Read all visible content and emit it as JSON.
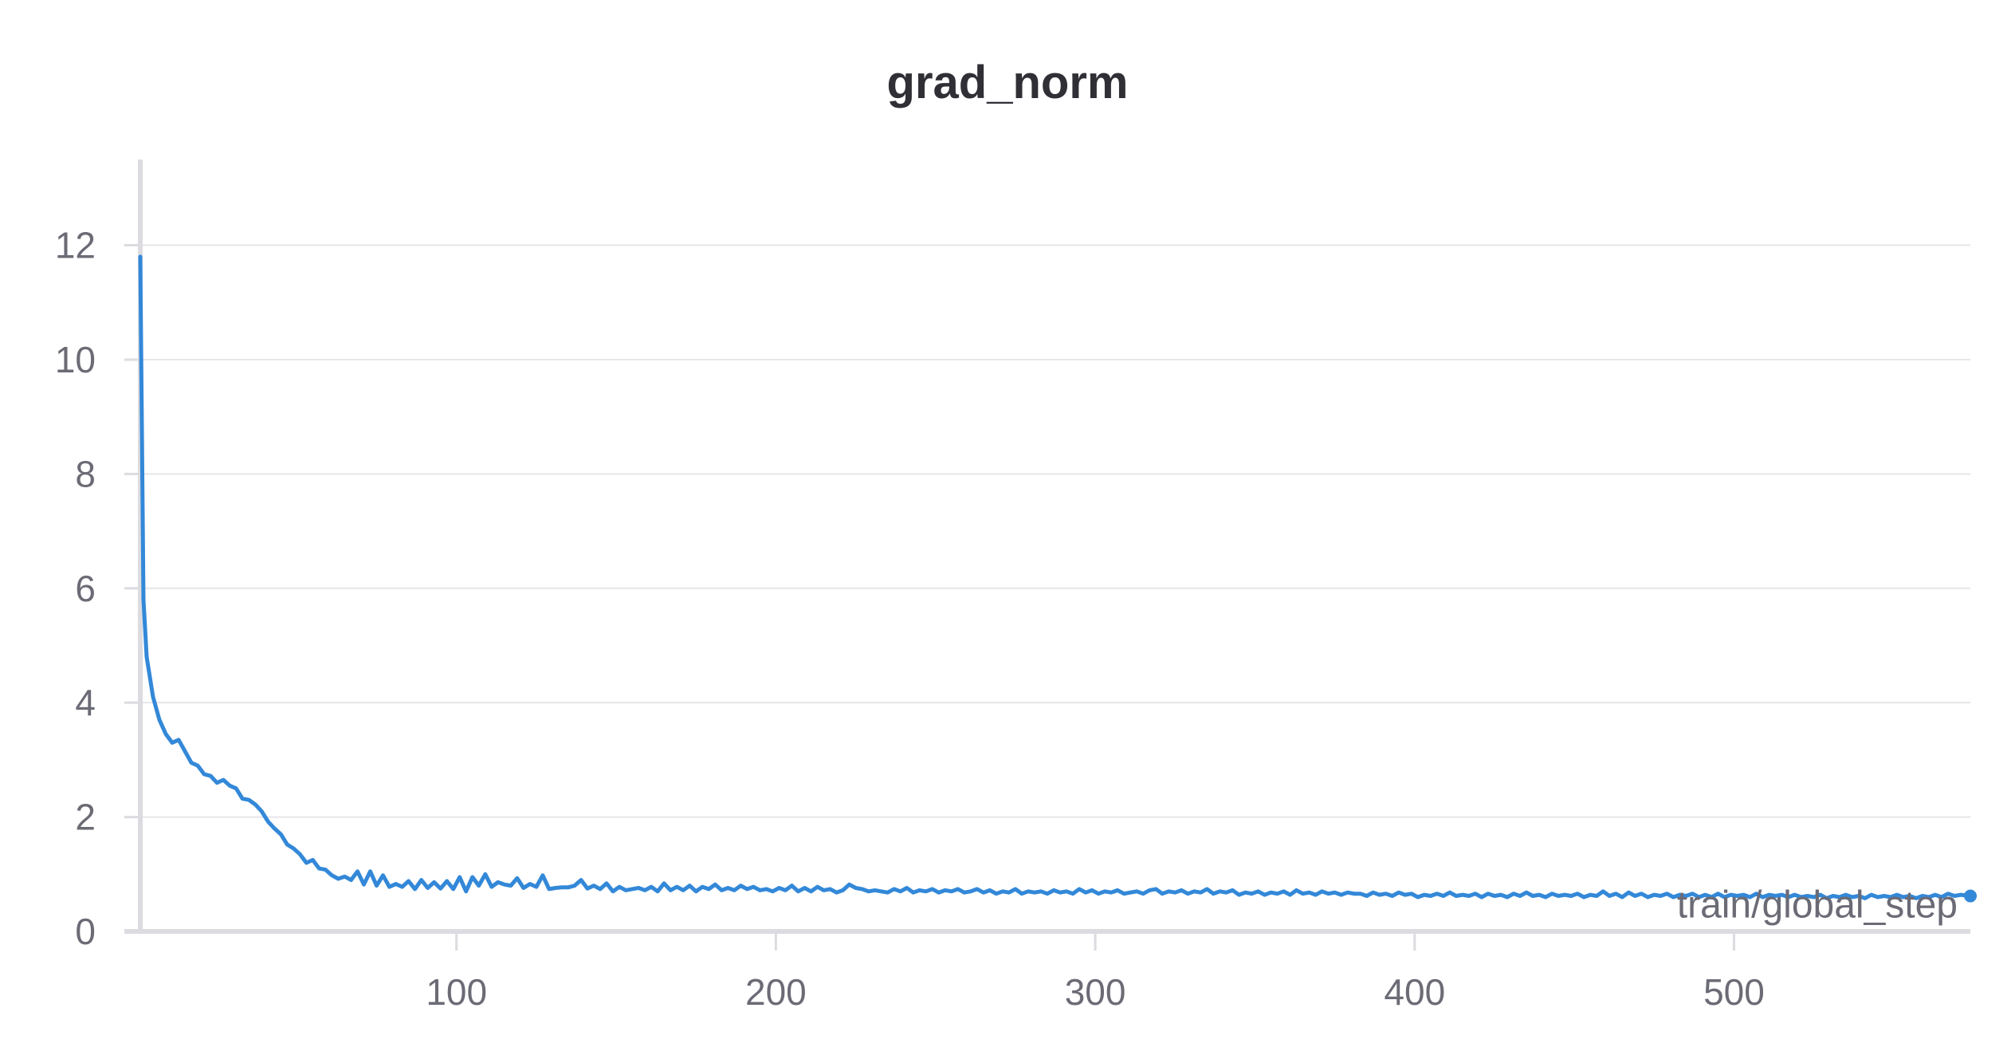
{
  "chart_data": {
    "type": "line",
    "title": "grad_norm",
    "xlabel": "train/global_step",
    "ylabel": "",
    "xlim": [
      1,
      574
    ],
    "ylim": [
      0,
      13.5
    ],
    "x_ticks": [
      100,
      200,
      300,
      400,
      500
    ],
    "y_ticks": [
      0,
      2,
      4,
      6,
      8,
      10,
      12
    ],
    "grid": "horizontal",
    "colors": {
      "line": "#3388d8",
      "grid": "#e6e6ea",
      "axis": "#dcdce0",
      "text": "#6b6b76",
      "title": "#2f2f35"
    },
    "series": [
      {
        "points": [
          [
            1,
            11.8
          ],
          [
            2,
            5.8
          ],
          [
            3,
            4.8
          ],
          [
            5,
            4.1
          ],
          [
            7,
            3.7
          ],
          [
            9,
            3.45
          ],
          [
            11,
            3.3
          ],
          [
            13,
            3.35
          ],
          [
            15,
            3.15
          ],
          [
            17,
            2.95
          ],
          [
            19,
            2.9
          ],
          [
            21,
            2.75
          ],
          [
            23,
            2.72
          ],
          [
            25,
            2.6
          ],
          [
            27,
            2.65
          ],
          [
            29,
            2.55
          ],
          [
            31,
            2.5
          ],
          [
            33,
            2.32
          ],
          [
            35,
            2.3
          ],
          [
            37,
            2.22
          ],
          [
            39,
            2.1
          ],
          [
            41,
            1.92
          ],
          [
            43,
            1.8
          ],
          [
            45,
            1.7
          ],
          [
            47,
            1.52
          ],
          [
            49,
            1.45
          ],
          [
            51,
            1.35
          ],
          [
            53,
            1.2
          ],
          [
            55,
            1.25
          ],
          [
            57,
            1.1
          ],
          [
            59,
            1.08
          ],
          [
            61,
            0.98
          ],
          [
            63,
            0.92
          ],
          [
            65,
            0.96
          ],
          [
            67,
            0.9
          ],
          [
            69,
            1.05
          ],
          [
            71,
            0.82
          ],
          [
            73,
            1.05
          ],
          [
            75,
            0.8
          ],
          [
            77,
            0.98
          ],
          [
            79,
            0.78
          ],
          [
            81,
            0.83
          ],
          [
            83,
            0.78
          ],
          [
            85,
            0.88
          ],
          [
            87,
            0.74
          ],
          [
            89,
            0.9
          ],
          [
            91,
            0.76
          ],
          [
            93,
            0.86
          ],
          [
            95,
            0.75
          ],
          [
            97,
            0.88
          ],
          [
            99,
            0.74
          ],
          [
            101,
            0.95
          ],
          [
            103,
            0.7
          ],
          [
            105,
            0.95
          ],
          [
            107,
            0.8
          ],
          [
            109,
            1.0
          ],
          [
            111,
            0.78
          ],
          [
            113,
            0.86
          ],
          [
            115,
            0.82
          ],
          [
            117,
            0.8
          ],
          [
            119,
            0.93
          ],
          [
            121,
            0.76
          ],
          [
            123,
            0.83
          ],
          [
            125,
            0.78
          ],
          [
            127,
            0.98
          ],
          [
            129,
            0.74
          ],
          [
            131,
            0.76
          ],
          [
            133,
            0.77
          ],
          [
            135,
            0.77
          ],
          [
            137,
            0.8
          ],
          [
            139,
            0.9
          ],
          [
            141,
            0.75
          ],
          [
            143,
            0.8
          ],
          [
            145,
            0.74
          ],
          [
            147,
            0.84
          ],
          [
            149,
            0.7
          ],
          [
            151,
            0.78
          ],
          [
            153,
            0.72
          ],
          [
            155,
            0.74
          ],
          [
            157,
            0.76
          ],
          [
            159,
            0.72
          ],
          [
            161,
            0.78
          ],
          [
            163,
            0.7
          ],
          [
            165,
            0.84
          ],
          [
            167,
            0.72
          ],
          [
            169,
            0.78
          ],
          [
            171,
            0.72
          ],
          [
            173,
            0.8
          ],
          [
            175,
            0.7
          ],
          [
            177,
            0.78
          ],
          [
            179,
            0.74
          ],
          [
            181,
            0.82
          ],
          [
            183,
            0.72
          ],
          [
            185,
            0.76
          ],
          [
            187,
            0.72
          ],
          [
            189,
            0.8
          ],
          [
            191,
            0.74
          ],
          [
            193,
            0.78
          ],
          [
            195,
            0.72
          ],
          [
            197,
            0.74
          ],
          [
            199,
            0.7
          ],
          [
            201,
            0.76
          ],
          [
            203,
            0.72
          ],
          [
            205,
            0.8
          ],
          [
            207,
            0.7
          ],
          [
            209,
            0.76
          ],
          [
            211,
            0.7
          ],
          [
            213,
            0.78
          ],
          [
            215,
            0.72
          ],
          [
            217,
            0.74
          ],
          [
            219,
            0.68
          ],
          [
            221,
            0.72
          ],
          [
            223,
            0.82
          ],
          [
            225,
            0.76
          ],
          [
            227,
            0.74
          ],
          [
            229,
            0.7
          ],
          [
            231,
            0.72
          ],
          [
            233,
            0.7
          ],
          [
            235,
            0.68
          ],
          [
            237,
            0.74
          ],
          [
            239,
            0.7
          ],
          [
            241,
            0.76
          ],
          [
            243,
            0.68
          ],
          [
            245,
            0.72
          ],
          [
            247,
            0.7
          ],
          [
            249,
            0.74
          ],
          [
            251,
            0.68
          ],
          [
            253,
            0.72
          ],
          [
            255,
            0.7
          ],
          [
            257,
            0.74
          ],
          [
            259,
            0.68
          ],
          [
            261,
            0.7
          ],
          [
            263,
            0.74
          ],
          [
            265,
            0.68
          ],
          [
            267,
            0.72
          ],
          [
            269,
            0.66
          ],
          [
            271,
            0.7
          ],
          [
            273,
            0.68
          ],
          [
            275,
            0.74
          ],
          [
            277,
            0.66
          ],
          [
            279,
            0.7
          ],
          [
            281,
            0.68
          ],
          [
            283,
            0.7
          ],
          [
            285,
            0.66
          ],
          [
            287,
            0.72
          ],
          [
            289,
            0.68
          ],
          [
            291,
            0.7
          ],
          [
            293,
            0.66
          ],
          [
            295,
            0.74
          ],
          [
            297,
            0.68
          ],
          [
            299,
            0.72
          ],
          [
            301,
            0.66
          ],
          [
            303,
            0.7
          ],
          [
            305,
            0.68
          ],
          [
            307,
            0.72
          ],
          [
            309,
            0.66
          ],
          [
            311,
            0.68
          ],
          [
            313,
            0.7
          ],
          [
            315,
            0.66
          ],
          [
            317,
            0.72
          ],
          [
            319,
            0.74
          ],
          [
            321,
            0.66
          ],
          [
            323,
            0.7
          ],
          [
            325,
            0.68
          ],
          [
            327,
            0.72
          ],
          [
            329,
            0.66
          ],
          [
            331,
            0.7
          ],
          [
            333,
            0.68
          ],
          [
            335,
            0.74
          ],
          [
            337,
            0.66
          ],
          [
            339,
            0.7
          ],
          [
            341,
            0.68
          ],
          [
            343,
            0.72
          ],
          [
            345,
            0.64
          ],
          [
            347,
            0.68
          ],
          [
            349,
            0.66
          ],
          [
            351,
            0.7
          ],
          [
            353,
            0.64
          ],
          [
            355,
            0.68
          ],
          [
            357,
            0.66
          ],
          [
            359,
            0.7
          ],
          [
            361,
            0.64
          ],
          [
            363,
            0.72
          ],
          [
            365,
            0.66
          ],
          [
            367,
            0.68
          ],
          [
            369,
            0.64
          ],
          [
            371,
            0.7
          ],
          [
            373,
            0.66
          ],
          [
            375,
            0.68
          ],
          [
            377,
            0.64
          ],
          [
            379,
            0.68
          ],
          [
            381,
            0.66
          ],
          [
            383,
            0.66
          ],
          [
            385,
            0.62
          ],
          [
            387,
            0.68
          ],
          [
            389,
            0.64
          ],
          [
            391,
            0.66
          ],
          [
            393,
            0.62
          ],
          [
            395,
            0.68
          ],
          [
            397,
            0.64
          ],
          [
            399,
            0.66
          ],
          [
            401,
            0.6
          ],
          [
            403,
            0.64
          ],
          [
            405,
            0.62
          ],
          [
            407,
            0.66
          ],
          [
            409,
            0.62
          ],
          [
            411,
            0.68
          ],
          [
            413,
            0.62
          ],
          [
            415,
            0.64
          ],
          [
            417,
            0.62
          ],
          [
            419,
            0.66
          ],
          [
            421,
            0.6
          ],
          [
            423,
            0.66
          ],
          [
            425,
            0.62
          ],
          [
            427,
            0.64
          ],
          [
            429,
            0.6
          ],
          [
            431,
            0.66
          ],
          [
            433,
            0.62
          ],
          [
            435,
            0.68
          ],
          [
            437,
            0.62
          ],
          [
            439,
            0.64
          ],
          [
            441,
            0.6
          ],
          [
            443,
            0.66
          ],
          [
            445,
            0.62
          ],
          [
            447,
            0.64
          ],
          [
            449,
            0.62
          ],
          [
            451,
            0.66
          ],
          [
            453,
            0.6
          ],
          [
            455,
            0.64
          ],
          [
            457,
            0.62
          ],
          [
            459,
            0.7
          ],
          [
            461,
            0.62
          ],
          [
            463,
            0.66
          ],
          [
            465,
            0.6
          ],
          [
            467,
            0.68
          ],
          [
            469,
            0.62
          ],
          [
            471,
            0.66
          ],
          [
            473,
            0.6
          ],
          [
            475,
            0.64
          ],
          [
            477,
            0.62
          ],
          [
            479,
            0.66
          ],
          [
            481,
            0.6
          ],
          [
            483,
            0.64
          ],
          [
            485,
            0.62
          ],
          [
            487,
            0.66
          ],
          [
            489,
            0.6
          ],
          [
            491,
            0.64
          ],
          [
            493,
            0.6
          ],
          [
            495,
            0.66
          ],
          [
            497,
            0.6
          ],
          [
            499,
            0.64
          ],
          [
            501,
            0.62
          ],
          [
            503,
            0.64
          ],
          [
            505,
            0.6
          ],
          [
            507,
            0.66
          ],
          [
            509,
            0.6
          ],
          [
            511,
            0.64
          ],
          [
            513,
            0.62
          ],
          [
            515,
            0.64
          ],
          [
            517,
            0.6
          ],
          [
            519,
            0.64
          ],
          [
            521,
            0.6
          ],
          [
            523,
            0.62
          ],
          [
            525,
            0.6
          ],
          [
            527,
            0.64
          ],
          [
            529,
            0.58
          ],
          [
            531,
            0.62
          ],
          [
            533,
            0.6
          ],
          [
            535,
            0.64
          ],
          [
            537,
            0.6
          ],
          [
            539,
            0.62
          ],
          [
            541,
            0.58
          ],
          [
            543,
            0.64
          ],
          [
            545,
            0.6
          ],
          [
            547,
            0.62
          ],
          [
            549,
            0.6
          ],
          [
            551,
            0.64
          ],
          [
            553,
            0.6
          ],
          [
            555,
            0.62
          ],
          [
            557,
            0.58
          ],
          [
            559,
            0.62
          ],
          [
            561,
            0.6
          ],
          [
            563,
            0.64
          ],
          [
            565,
            0.6
          ],
          [
            567,
            0.66
          ],
          [
            569,
            0.62
          ],
          [
            571,
            0.64
          ],
          [
            574,
            0.62
          ]
        ]
      }
    ]
  }
}
